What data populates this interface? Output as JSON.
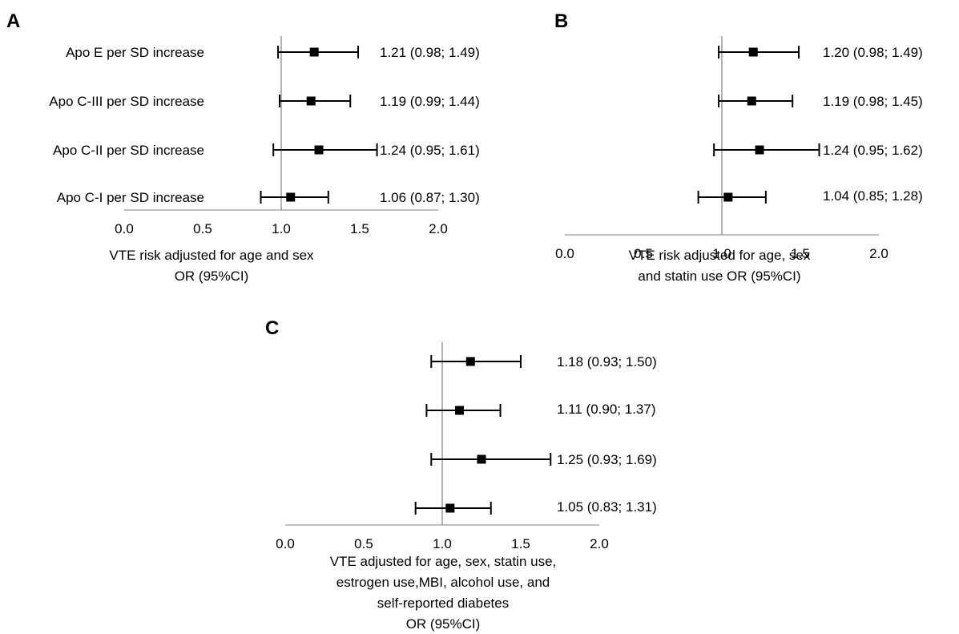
{
  "chart_data": [
    {
      "type": "forest",
      "panel": "A",
      "rows": [
        {
          "label": "Apo E per SD increase",
          "or": 1.21,
          "lo": 0.98,
          "hi": 1.49,
          "text": "1.21 (0.98; 1.49)"
        },
        {
          "label": "Apo C-III per SD increase",
          "or": 1.19,
          "lo": 0.99,
          "hi": 1.44,
          "text": "1.19 (0.99; 1.44)"
        },
        {
          "label": "Apo C-II per SD increase",
          "or": 1.24,
          "lo": 0.95,
          "hi": 1.61,
          "text": "1.24 (0.95; 1.61)"
        },
        {
          "label": "Apo C-I per SD increase",
          "or": 1.06,
          "lo": 0.87,
          "hi": 1.3,
          "text": "1.06 (0.87; 1.30)"
        }
      ],
      "xlim": [
        0,
        2
      ],
      "xticks": [
        "0.0",
        "0.5",
        "1.0",
        "1.5",
        "2.0"
      ],
      "reference": 1.0,
      "xlabel": [
        "VTE risk adjusted for age and sex",
        "OR (95%CI)"
      ]
    },
    {
      "type": "forest",
      "panel": "B",
      "rows": [
        {
          "or": 1.2,
          "lo": 0.98,
          "hi": 1.49,
          "text": "1.20 (0.98; 1.49)"
        },
        {
          "or": 1.19,
          "lo": 0.98,
          "hi": 1.45,
          "text": "1.19 (0.98; 1.45)"
        },
        {
          "or": 1.24,
          "lo": 0.95,
          "hi": 1.62,
          "text": "1.24 (0.95; 1.62)"
        },
        {
          "or": 1.04,
          "lo": 0.85,
          "hi": 1.28,
          "text": "1.04 (0.85; 1.28)"
        }
      ],
      "xlim": [
        0,
        2
      ],
      "xticks": [
        "0.0",
        "0.5",
        "1.0",
        "1.5",
        "2.0"
      ],
      "reference": 1.0,
      "xlabel": [
        "VTE risk adjusted for age, sex",
        "and statin use OR (95%CI)"
      ]
    },
    {
      "type": "forest",
      "panel": "C",
      "rows": [
        {
          "or": 1.18,
          "lo": 0.93,
          "hi": 1.5,
          "text": "1.18 (0.93; 1.50)"
        },
        {
          "or": 1.11,
          "lo": 0.9,
          "hi": 1.37,
          "text": "1.11 (0.90; 1.37)"
        },
        {
          "or": 1.25,
          "lo": 0.93,
          "hi": 1.69,
          "text": "1.25 (0.93; 1.69)"
        },
        {
          "or": 1.05,
          "lo": 0.83,
          "hi": 1.31,
          "text": "1.05 (0.83; 1.31)"
        }
      ],
      "xlim": [
        0,
        2
      ],
      "xticks": [
        "0.0",
        "0.5",
        "1.0",
        "1.5",
        "2.0"
      ],
      "reference": 1.0,
      "xlabel": [
        "VTE adjusted for age, sex, statin use,",
        "estrogen use,MBI, alcohol use, and",
        "self-reported diabetes",
        "OR (95%CI)"
      ]
    }
  ]
}
